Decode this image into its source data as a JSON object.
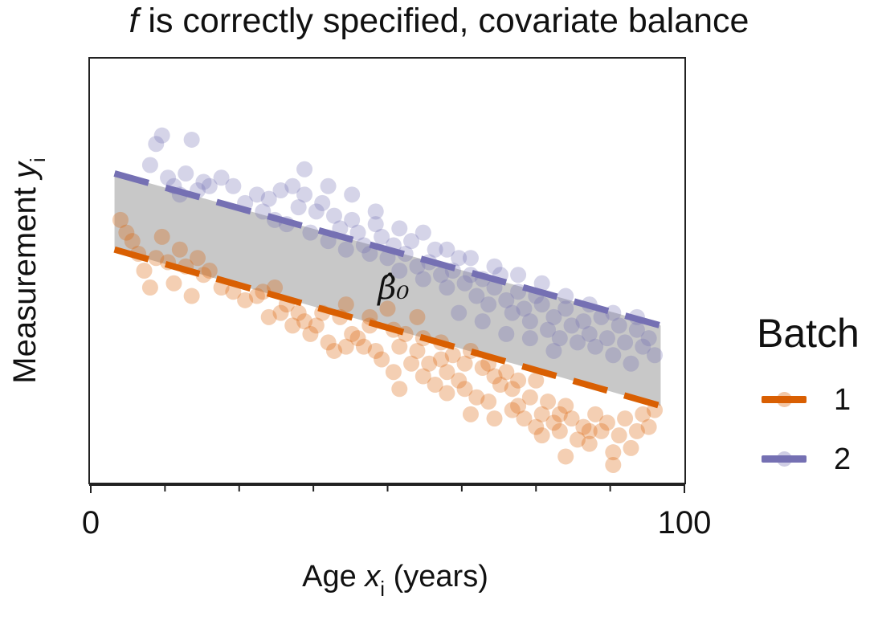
{
  "chart_data": {
    "type": "scatter",
    "title_pre": "f",
    "title_rest": " is correctly specified, covariate balance",
    "xlabel_pre": "Age ",
    "xlabel_var": "x",
    "xlabel_sub": "i",
    "xlabel_post": " (years)",
    "ylabel_pre": "Measurement ",
    "ylabel_var": "y",
    "ylabel_sub": "i",
    "xlim": [
      0,
      100
    ],
    "ylim": [
      0,
      10
    ],
    "x_tick_labels": [
      {
        "value": 0,
        "label": "0"
      },
      {
        "value": 100,
        "label": "100"
      }
    ],
    "x_minor_ticks": [
      12.5,
      25,
      37.5,
      50,
      62.5,
      75,
      87.5
    ],
    "grid": false,
    "legend_position": "right",
    "legend_title": "Batch",
    "annotation": "β̂₀",
    "shaded_region": {
      "color": "#c8c8c8",
      "between": [
        "2",
        "1"
      ]
    },
    "series": [
      {
        "name": "1",
        "color": "#d95f02",
        "fit_line": {
          "x": [
            4,
            96
          ],
          "y": [
            5.5,
            1.8
          ]
        },
        "points": [
          [
            5,
            6.2
          ],
          [
            6,
            5.9
          ],
          [
            7,
            5.7
          ],
          [
            8,
            5.4
          ],
          [
            9,
            5.0
          ],
          [
            10,
            4.6
          ],
          [
            11,
            5.3
          ],
          [
            12,
            5.8
          ],
          [
            13,
            5.2
          ],
          [
            14,
            4.7
          ],
          [
            15,
            5.5
          ],
          [
            16,
            5.1
          ],
          [
            17,
            4.4
          ],
          [
            18,
            5.3
          ],
          [
            19,
            4.9
          ],
          [
            20,
            5.0
          ],
          [
            22,
            4.6
          ],
          [
            24,
            4.5
          ],
          [
            26,
            4.3
          ],
          [
            28,
            4.4
          ],
          [
            29,
            4.5
          ],
          [
            30,
            3.9
          ],
          [
            31,
            4.6
          ],
          [
            32,
            4.0
          ],
          [
            33,
            4.2
          ],
          [
            34,
            3.7
          ],
          [
            35,
            4.0
          ],
          [
            36,
            3.8
          ],
          [
            37,
            3.5
          ],
          [
            38,
            3.7
          ],
          [
            39,
            4.0
          ],
          [
            40,
            3.3
          ],
          [
            41,
            3.1
          ],
          [
            42,
            3.9
          ],
          [
            43,
            3.2
          ],
          [
            44,
            3.5
          ],
          [
            45,
            3.4
          ],
          [
            46,
            3.2
          ],
          [
            47,
            3.7
          ],
          [
            48,
            3.1
          ],
          [
            49,
            2.9
          ],
          [
            50,
            4.1
          ],
          [
            51,
            2.6
          ],
          [
            52,
            3.2
          ],
          [
            53,
            3.5
          ],
          [
            54,
            2.8
          ],
          [
            55,
            3.1
          ],
          [
            56,
            2.5
          ],
          [
            57,
            2.8
          ],
          [
            58,
            2.3
          ],
          [
            59,
            2.9
          ],
          [
            60,
            2.6
          ],
          [
            61,
            3.0
          ],
          [
            62,
            2.4
          ],
          [
            63,
            2.2
          ],
          [
            64,
            3.1
          ],
          [
            65,
            2.0
          ],
          [
            66,
            2.7
          ],
          [
            67,
            1.9
          ],
          [
            68,
            2.5
          ],
          [
            69,
            2.3
          ],
          [
            70,
            2.6
          ],
          [
            71,
            2.2
          ],
          [
            72,
            1.8
          ],
          [
            73,
            1.5
          ],
          [
            74,
            2.0
          ],
          [
            75,
            2.4
          ],
          [
            76,
            1.6
          ],
          [
            77,
            1.9
          ],
          [
            78,
            1.4
          ],
          [
            79,
            1.2
          ],
          [
            80,
            1.8
          ],
          [
            81,
            1.5
          ],
          [
            82,
            1.0
          ],
          [
            83,
            1.3
          ],
          [
            84,
            0.9
          ],
          [
            85,
            1.6
          ],
          [
            86,
            1.2
          ],
          [
            87,
            1.4
          ],
          [
            88,
            0.7
          ],
          [
            89,
            1.1
          ],
          [
            90,
            1.5
          ],
          [
            91,
            0.8
          ],
          [
            92,
            1.2
          ],
          [
            93,
            1.6
          ],
          [
            94,
            1.3
          ],
          [
            95,
            1.7
          ],
          [
            52,
            2.2
          ],
          [
            56,
            3.4
          ],
          [
            60,
            2.1
          ],
          [
            64,
            1.6
          ],
          [
            68,
            1.5
          ],
          [
            72,
            2.4
          ],
          [
            76,
            1.1
          ],
          [
            80,
            0.6
          ],
          [
            84,
            1.2
          ],
          [
            88,
            0.4
          ],
          [
            43,
            4.2
          ],
          [
            47,
            3.9
          ],
          [
            51,
            3.6
          ],
          [
            55,
            3.9
          ],
          [
            59,
            3.3
          ],
          [
            63,
            2.8
          ],
          [
            67,
            2.8
          ],
          [
            71,
            1.7
          ],
          [
            75,
            1.3
          ],
          [
            79,
            1.6
          ]
        ]
      },
      {
        "name": "2",
        "color": "#7570b3",
        "fit_line": {
          "x": [
            4,
            96
          ],
          "y": [
            7.3,
            3.7
          ]
        },
        "points": [
          [
            10,
            7.5
          ],
          [
            11,
            8.0
          ],
          [
            12,
            8.2
          ],
          [
            13,
            7.2
          ],
          [
            14,
            7.0
          ],
          [
            15,
            6.8
          ],
          [
            16,
            7.3
          ],
          [
            17,
            8.1
          ],
          [
            18,
            6.9
          ],
          [
            19,
            7.1
          ],
          [
            20,
            7.0
          ],
          [
            22,
            7.2
          ],
          [
            24,
            7.0
          ],
          [
            26,
            6.6
          ],
          [
            28,
            6.8
          ],
          [
            29,
            6.4
          ],
          [
            30,
            6.7
          ],
          [
            31,
            6.2
          ],
          [
            32,
            6.9
          ],
          [
            33,
            6.1
          ],
          [
            34,
            7.0
          ],
          [
            35,
            6.5
          ],
          [
            36,
            6.8
          ],
          [
            37,
            5.9
          ],
          [
            38,
            6.4
          ],
          [
            39,
            6.6
          ],
          [
            40,
            5.7
          ],
          [
            41,
            6.3
          ],
          [
            42,
            6.0
          ],
          [
            43,
            5.5
          ],
          [
            44,
            6.2
          ],
          [
            45,
            5.9
          ],
          [
            46,
            5.6
          ],
          [
            47,
            5.4
          ],
          [
            48,
            6.1
          ],
          [
            49,
            5.8
          ],
          [
            50,
            5.3
          ],
          [
            51,
            5.6
          ],
          [
            52,
            5.0
          ],
          [
            53,
            5.4
          ],
          [
            54,
            5.7
          ],
          [
            55,
            5.1
          ],
          [
            56,
            4.8
          ],
          [
            57,
            5.2
          ],
          [
            58,
            5.5
          ],
          [
            59,
            4.9
          ],
          [
            60,
            4.6
          ],
          [
            61,
            5.0
          ],
          [
            62,
            5.3
          ],
          [
            63,
            4.7
          ],
          [
            64,
            4.9
          ],
          [
            65,
            4.4
          ],
          [
            66,
            4.8
          ],
          [
            67,
            4.2
          ],
          [
            68,
            4.6
          ],
          [
            69,
            4.9
          ],
          [
            70,
            4.3
          ],
          [
            71,
            4.0
          ],
          [
            72,
            4.5
          ],
          [
            73,
            4.1
          ],
          [
            74,
            3.8
          ],
          [
            75,
            4.4
          ],
          [
            76,
            4.2
          ],
          [
            77,
            3.6
          ],
          [
            78,
            3.9
          ],
          [
            79,
            3.4
          ],
          [
            80,
            4.1
          ],
          [
            81,
            3.7
          ],
          [
            82,
            3.3
          ],
          [
            83,
            3.8
          ],
          [
            84,
            3.5
          ],
          [
            85,
            3.2
          ],
          [
            86,
            3.9
          ],
          [
            87,
            3.4
          ],
          [
            88,
            3.0
          ],
          [
            89,
            3.7
          ],
          [
            90,
            3.3
          ],
          [
            91,
            2.8
          ],
          [
            92,
            3.6
          ],
          [
            93,
            3.2
          ],
          [
            94,
            3.4
          ],
          [
            95,
            3.0
          ],
          [
            36,
            7.4
          ],
          [
            40,
            7.0
          ],
          [
            44,
            6.8
          ],
          [
            48,
            6.4
          ],
          [
            52,
            6.0
          ],
          [
            56,
            5.9
          ],
          [
            60,
            5.5
          ],
          [
            64,
            5.3
          ],
          [
            68,
            5.1
          ],
          [
            72,
            4.9
          ],
          [
            76,
            4.7
          ],
          [
            80,
            4.4
          ],
          [
            84,
            4.2
          ],
          [
            88,
            4.0
          ],
          [
            92,
            3.9
          ],
          [
            62,
            4.0
          ],
          [
            66,
            3.8
          ],
          [
            70,
            3.5
          ],
          [
            74,
            3.4
          ],
          [
            78,
            3.1
          ]
        ]
      }
    ]
  }
}
